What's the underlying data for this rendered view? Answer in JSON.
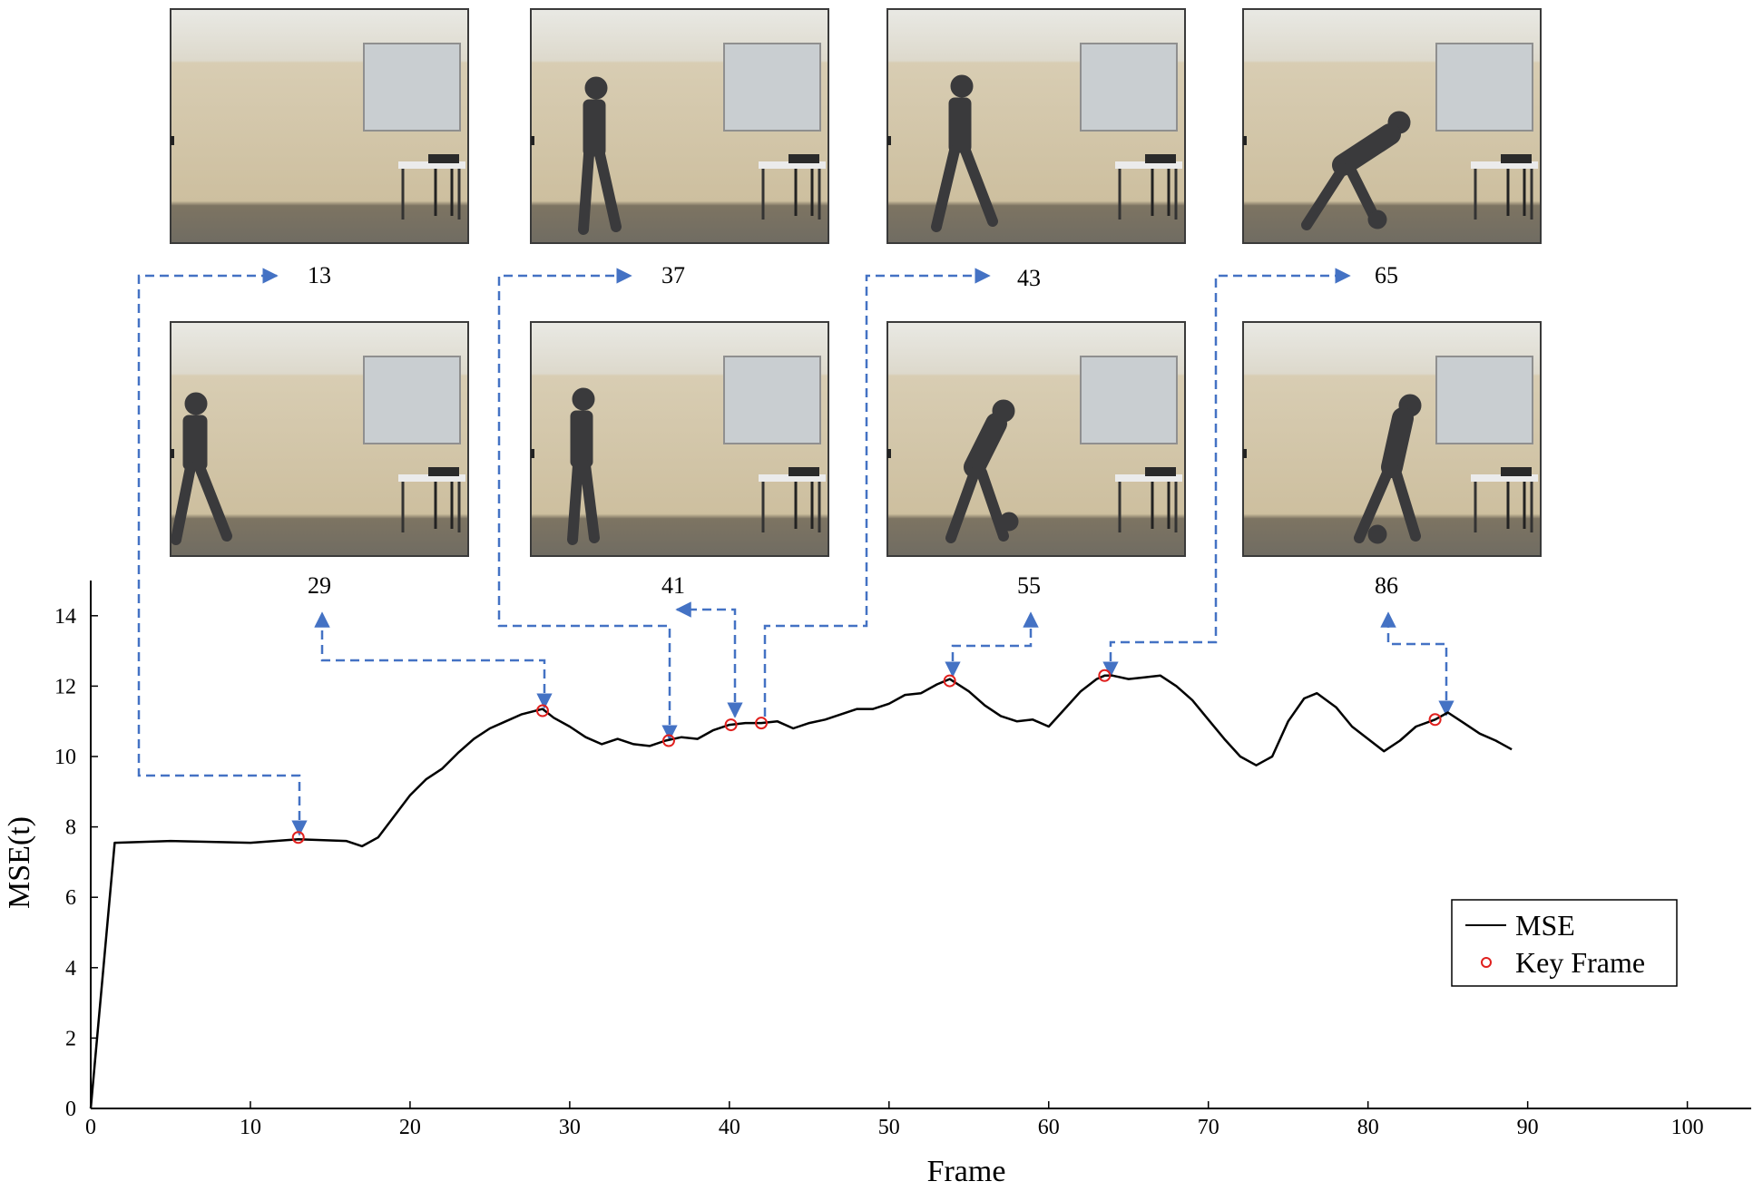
{
  "key_frames": [
    {
      "frame": 13,
      "label": "13"
    },
    {
      "frame": 29,
      "label": "29"
    },
    {
      "frame": 37,
      "label": "37"
    },
    {
      "frame": 41,
      "label": "41"
    },
    {
      "frame": 43,
      "label": "43"
    },
    {
      "frame": 55,
      "label": "55"
    },
    {
      "frame": 65,
      "label": "65"
    },
    {
      "frame": 86,
      "label": "86"
    }
  ],
  "chart_data": {
    "type": "line",
    "xlabel": "Frame",
    "ylabel": "MSE(t)",
    "xlim": [
      0,
      104
    ],
    "ylim": [
      0,
      15
    ],
    "x_ticks": [
      0,
      10,
      20,
      30,
      40,
      50,
      60,
      70,
      80,
      90,
      100
    ],
    "y_ticks": [
      0,
      2,
      4,
      6,
      8,
      10,
      12,
      14
    ],
    "grid": false,
    "legend_position": "bottom-right",
    "colors": {
      "line": "#000000",
      "marker": "#e0201e",
      "arrow": "#4472c4"
    },
    "series": [
      {
        "name": "MSE",
        "x": [
          0,
          1.5,
          5,
          10,
          13,
          16,
          17,
          18,
          19,
          20,
          21,
          22,
          23,
          24,
          25,
          26,
          27,
          28.3,
          29,
          30,
          31,
          32,
          33,
          34,
          35,
          36,
          37,
          38,
          39,
          40,
          41,
          42,
          43,
          44,
          45,
          46,
          47,
          48,
          49,
          50,
          51,
          52,
          53,
          53.8,
          55,
          56,
          57,
          58,
          59,
          60,
          61,
          62,
          63,
          63.5,
          64,
          65,
          66,
          67,
          68,
          69,
          70,
          71,
          72,
          73,
          74,
          75,
          76,
          76.8,
          78,
          79,
          80,
          81,
          82,
          83,
          84.2,
          85,
          86,
          87,
          88,
          89
        ],
        "y": [
          0,
          7.55,
          7.6,
          7.55,
          7.65,
          7.6,
          7.45,
          7.7,
          8.3,
          8.9,
          9.35,
          9.65,
          10.1,
          10.5,
          10.8,
          11.0,
          11.2,
          11.35,
          11.1,
          10.85,
          10.55,
          10.35,
          10.5,
          10.35,
          10.3,
          10.45,
          10.55,
          10.5,
          10.75,
          10.9,
          10.95,
          10.95,
          11.0,
          10.8,
          10.95,
          11.05,
          11.2,
          11.35,
          11.35,
          11.5,
          11.75,
          11.8,
          12.05,
          12.2,
          11.85,
          11.45,
          11.15,
          11.0,
          11.05,
          10.85,
          11.35,
          11.85,
          12.2,
          12.3,
          12.3,
          12.2,
          12.25,
          12.3,
          12.0,
          11.6,
          11.05,
          10.5,
          10.0,
          9.75,
          10.0,
          11.0,
          11.65,
          11.8,
          11.4,
          10.85,
          10.5,
          10.15,
          10.45,
          10.85,
          11.05,
          11.25,
          10.95,
          10.65,
          10.45,
          10.2
        ]
      },
      {
        "name": "Key Frame",
        "x": [
          13,
          28.3,
          36.2,
          40.1,
          42,
          53.8,
          63.5,
          84.2
        ],
        "y": [
          7.7,
          11.3,
          10.45,
          10.9,
          10.95,
          12.15,
          12.3,
          11.05
        ]
      }
    ]
  }
}
